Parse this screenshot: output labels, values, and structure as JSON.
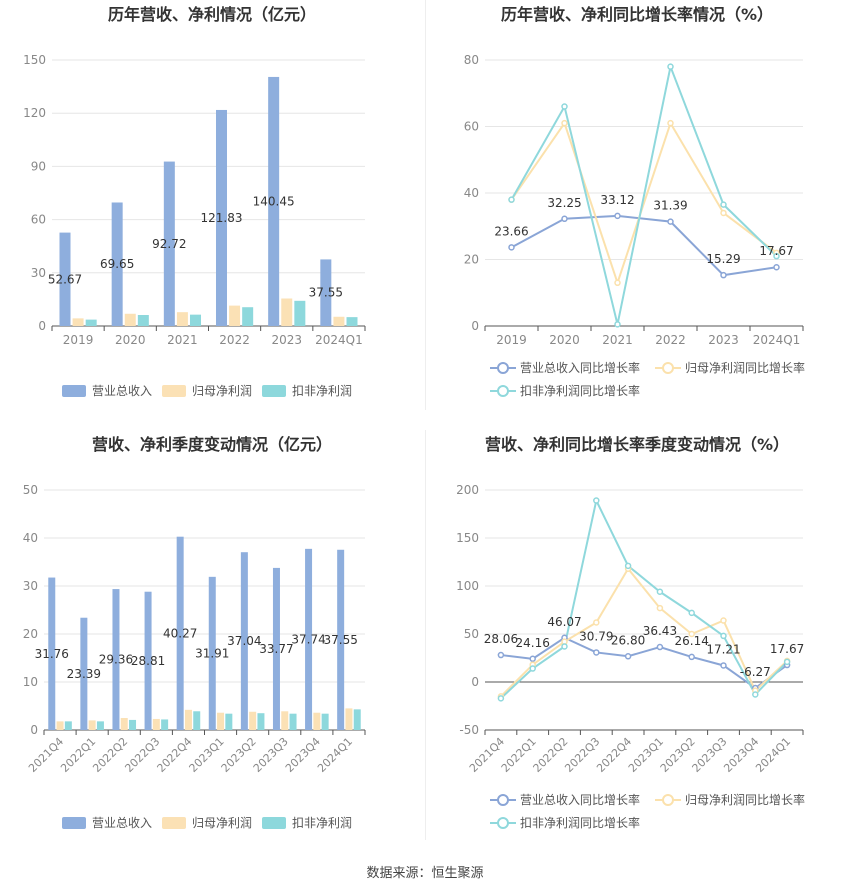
{
  "colors": {
    "revenue": "#8eaedd",
    "net_profit": "#fbe1b5",
    "deducted_profit": "#8dd8dc",
    "revenue_line": "#8aa5d6",
    "net_profit_line": "#fbe1ac",
    "deducted_line": "#8fd8dc",
    "grid": "#e6e6e6",
    "axis_text": "#888888",
    "title": "#333333"
  },
  "source": "数据来源：恒生聚源",
  "chart_data": [
    {
      "type": "bar",
      "title": "历年营收、净利情况（亿元）",
      "categories": [
        "2019",
        "2020",
        "2021",
        "2022",
        "2023",
        "2024Q1"
      ],
      "ylim": [
        0,
        150
      ],
      "yticks": [
        0,
        30,
        60,
        90,
        120,
        150
      ],
      "grid": true,
      "legend_position": "bottom",
      "label_series": 0,
      "series": [
        {
          "name": "营业总收入",
          "values": [
            52.67,
            69.65,
            92.72,
            121.83,
            140.45,
            37.55
          ],
          "labels": [
            "52.67",
            "69.65",
            "92.72",
            "121.83",
            "140.45",
            "37.55"
          ]
        },
        {
          "name": "归母净利润",
          "values": [
            4.3,
            6.9,
            7.8,
            11.5,
            15.5,
            5.2
          ]
        },
        {
          "name": "扣非净利润",
          "values": [
            3.6,
            6.2,
            6.4,
            10.6,
            14.2,
            5.0
          ]
        }
      ]
    },
    {
      "type": "line",
      "title": "历年营收、净利同比增长率情况（%）",
      "categories": [
        "2019",
        "2020",
        "2021",
        "2022",
        "2023",
        "2024Q1"
      ],
      "ylim": [
        0,
        80
      ],
      "yticks": [
        0,
        20,
        40,
        60,
        80
      ],
      "grid": true,
      "legend_position": "bottom",
      "label_series": 0,
      "series": [
        {
          "name": "营业总收入同比增长率",
          "values": [
            23.66,
            32.25,
            33.12,
            31.39,
            15.29,
            17.67
          ],
          "labels": [
            "23.66",
            "32.25",
            "33.12",
            "31.39",
            "15.29",
            "17.67"
          ]
        },
        {
          "name": "归母净利润同比增长率",
          "values": [
            38.0,
            61.0,
            13.0,
            61.0,
            34.0,
            22.0
          ]
        },
        {
          "name": "扣非净利润同比增长率",
          "values": [
            38.0,
            66.0,
            0.5,
            78.0,
            36.5,
            21.0
          ]
        }
      ]
    },
    {
      "type": "bar",
      "title": "营收、净利季度变动情况（亿元）",
      "categories": [
        "2021Q4",
        "2022Q1",
        "2022Q2",
        "2022Q3",
        "2022Q4",
        "2023Q1",
        "2023Q2",
        "2023Q3",
        "2023Q4",
        "2024Q1"
      ],
      "ylim": [
        0,
        50
      ],
      "yticks": [
        0,
        10,
        20,
        30,
        40,
        50
      ],
      "grid": true,
      "legend_position": "bottom",
      "label_series": 0,
      "series": [
        {
          "name": "营业总收入",
          "values": [
            31.76,
            23.39,
            29.36,
            28.81,
            40.27,
            31.91,
            37.04,
            33.77,
            37.74,
            37.55
          ],
          "labels": [
            "31.76",
            "23.39",
            "29.36",
            "28.81",
            "40.27",
            "31.91",
            "37.04",
            "33.77",
            "37.74",
            "37.55"
          ]
        },
        {
          "name": "归母净利润",
          "values": [
            1.8,
            2.0,
            2.5,
            2.3,
            4.2,
            3.6,
            3.8,
            3.9,
            3.6,
            4.5
          ]
        },
        {
          "name": "扣非净利润",
          "values": [
            1.8,
            1.8,
            2.1,
            2.2,
            3.9,
            3.4,
            3.5,
            3.4,
            3.4,
            4.3
          ]
        }
      ]
    },
    {
      "type": "line",
      "title": "营收、净利同比增长率季度变动情况（%）",
      "categories": [
        "2021Q4",
        "2022Q1",
        "2022Q2",
        "2022Q3",
        "2022Q4",
        "2023Q1",
        "2023Q2",
        "2023Q3",
        "2023Q4",
        "2024Q1"
      ],
      "ylim": [
        -50,
        200
      ],
      "yticks": [
        -50,
        0,
        50,
        100,
        150,
        200
      ],
      "grid": true,
      "legend_position": "bottom",
      "label_series": 0,
      "series": [
        {
          "name": "营业总收入同比增长率",
          "values": [
            28.06,
            24.16,
            46.07,
            30.79,
            26.8,
            36.43,
            26.14,
            17.21,
            -6.27,
            17.67
          ],
          "labels": [
            "28.06",
            "24.16",
            "46.07",
            "30.79",
            "26.80",
            "36.43",
            "26.14",
            "17.21",
            "-6.27",
            "17.67"
          ]
        },
        {
          "name": "归母净利润同比增长率",
          "values": [
            -15.0,
            18.0,
            42.0,
            62.0,
            118.0,
            77.0,
            50.0,
            64.0,
            -9.0,
            22.0
          ]
        },
        {
          "name": "扣非净利润同比增长率",
          "values": [
            -17.0,
            14.0,
            37.0,
            189.0,
            121.0,
            94.0,
            72.0,
            48.0,
            -13.0,
            21.0
          ]
        }
      ]
    }
  ]
}
